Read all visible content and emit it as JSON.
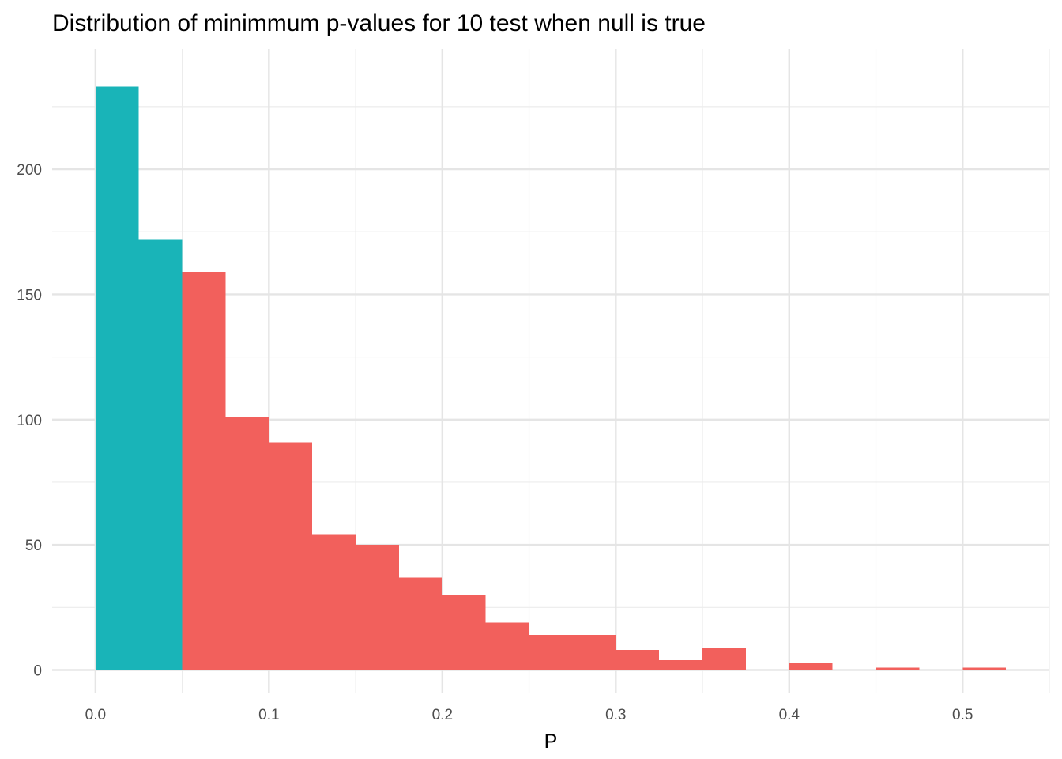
{
  "chart_data": {
    "type": "bar",
    "title": "Distribution of minimmum p-values for 10 test when null is true",
    "xlabel": "P",
    "ylabel": "",
    "xlim": [
      -0.025,
      0.55
    ],
    "ylim": [
      -9,
      248
    ],
    "x_ticks": [
      0.0,
      0.1,
      0.2,
      0.3,
      0.4,
      0.5
    ],
    "x_tick_labels": [
      "0.0",
      "0.1",
      "0.2",
      "0.3",
      "0.4",
      "0.5"
    ],
    "y_ticks": [
      0,
      50,
      100,
      150,
      200
    ],
    "y_tick_labels": [
      "0",
      "50",
      "100",
      "150",
      "200"
    ],
    "grid": true,
    "legend": "none",
    "bin_width": 0.025,
    "series": [
      {
        "color": "#19B4B8",
        "bins": [
          {
            "x0": 0.0,
            "x1": 0.025,
            "count": 233
          },
          {
            "x0": 0.025,
            "x1": 0.05,
            "count": 172
          }
        ]
      },
      {
        "color": "#F2605C",
        "bins": [
          {
            "x0": 0.05,
            "x1": 0.075,
            "count": 159
          },
          {
            "x0": 0.075,
            "x1": 0.1,
            "count": 101
          },
          {
            "x0": 0.1,
            "x1": 0.125,
            "count": 91
          },
          {
            "x0": 0.125,
            "x1": 0.15,
            "count": 54
          },
          {
            "x0": 0.15,
            "x1": 0.175,
            "count": 50
          },
          {
            "x0": 0.175,
            "x1": 0.2,
            "count": 37
          },
          {
            "x0": 0.2,
            "x1": 0.225,
            "count": 30
          },
          {
            "x0": 0.225,
            "x1": 0.25,
            "count": 19
          },
          {
            "x0": 0.25,
            "x1": 0.275,
            "count": 14
          },
          {
            "x0": 0.275,
            "x1": 0.3,
            "count": 14
          },
          {
            "x0": 0.3,
            "x1": 0.325,
            "count": 8
          },
          {
            "x0": 0.325,
            "x1": 0.35,
            "count": 4
          },
          {
            "x0": 0.35,
            "x1": 0.375,
            "count": 9
          },
          {
            "x0": 0.4,
            "x1": 0.425,
            "count": 3
          },
          {
            "x0": 0.45,
            "x1": 0.475,
            "count": 1
          },
          {
            "x0": 0.5,
            "x1": 0.525,
            "count": 1
          }
        ]
      }
    ]
  }
}
